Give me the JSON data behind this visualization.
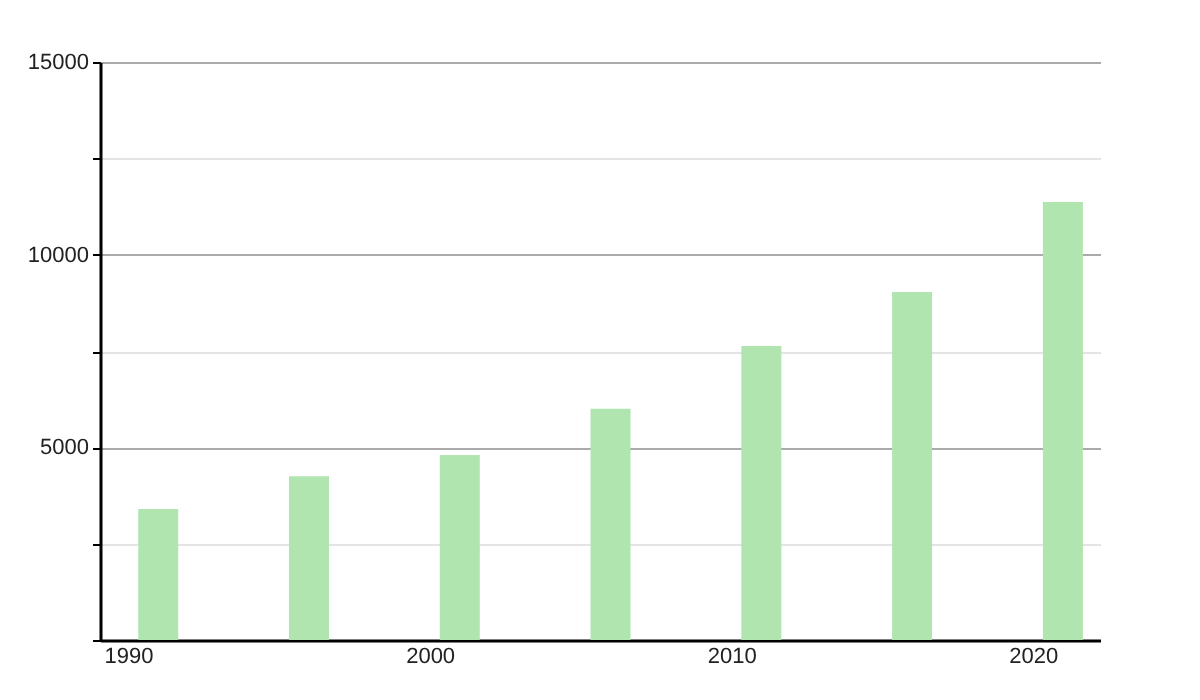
{
  "chart_data": {
    "type": "bar",
    "x": [
      1991,
      1996,
      2001,
      2006,
      2011,
      2016,
      2021
    ],
    "values": [
      3400,
      4250,
      4800,
      6000,
      7630,
      9030,
      11370
    ],
    "color": "#b0e5b0",
    "xlim": [
      1989.4,
      2021.9
    ],
    "xticks": [
      1990,
      2000,
      2010,
      2020
    ],
    "ylim": [
      0,
      15000
    ],
    "yticks": [
      {
        "value": 0,
        "label": null
      },
      {
        "value": 2500,
        "label": null
      },
      5000,
      {
        "value": 7500,
        "label": null
      },
      10000,
      {
        "value": 12500,
        "label": null
      },
      15000
    ],
    "grid": "y"
  }
}
